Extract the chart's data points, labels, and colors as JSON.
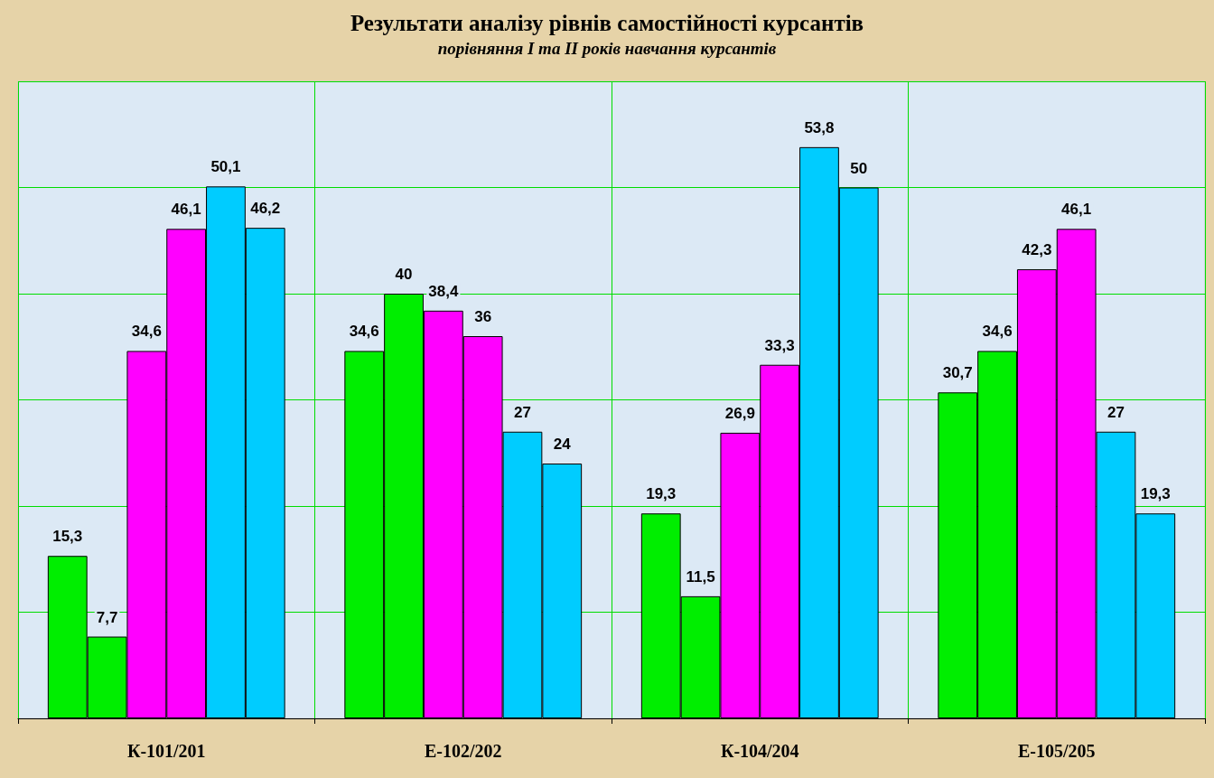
{
  "chart_data": {
    "type": "bar",
    "title": "Результати аналізу рівнів самостійності курсантів",
    "subtitle": "порівняння І та ІІ років навчання курсантів",
    "categories": [
      "К-101/201",
      "Е-102/202",
      "К-104/204",
      "Е-105/205"
    ],
    "series": [
      {
        "color": "#00ee00",
        "values": [
          15.3,
          34.6,
          19.3,
          30.7
        ],
        "value_labels": [
          "15,3",
          "34,6",
          "19,3",
          "30,7"
        ]
      },
      {
        "color": "#00ee00",
        "values": [
          7.7,
          40,
          11.5,
          34.6
        ],
        "value_labels": [
          "7,7",
          "40",
          "11,5",
          "34,6"
        ]
      },
      {
        "color": "#ff00ff",
        "values": [
          34.6,
          38.4,
          26.9,
          42.3
        ],
        "value_labels": [
          "34,6",
          "38,4",
          "26,9",
          "42,3"
        ]
      },
      {
        "color": "#ff00ff",
        "values": [
          46.1,
          36,
          33.3,
          46.1
        ],
        "value_labels": [
          "46,1",
          "36",
          "33,3",
          "46,1"
        ]
      },
      {
        "color": "#00ccff",
        "values": [
          50.1,
          27,
          53.8,
          27
        ],
        "value_labels": [
          "50,1",
          "27",
          "53,8",
          "27"
        ]
      },
      {
        "color": "#00ccff",
        "values": [
          46.2,
          24,
          50,
          19.3
        ],
        "value_labels": [
          "46,2",
          "24",
          "50",
          "19,3"
        ]
      }
    ],
    "ylim": [
      0,
      60
    ],
    "yticks": [
      {
        "value": 0,
        "label": null
      },
      {
        "value": 10,
        "label": null
      },
      {
        "value": 20,
        "label": null
      },
      {
        "value": 30,
        "label": null
      },
      {
        "value": 40,
        "label": null
      },
      {
        "value": 50,
        "label": null
      },
      {
        "value": 60,
        "label": null
      }
    ],
    "tick_labels": "x",
    "grid": true
  }
}
